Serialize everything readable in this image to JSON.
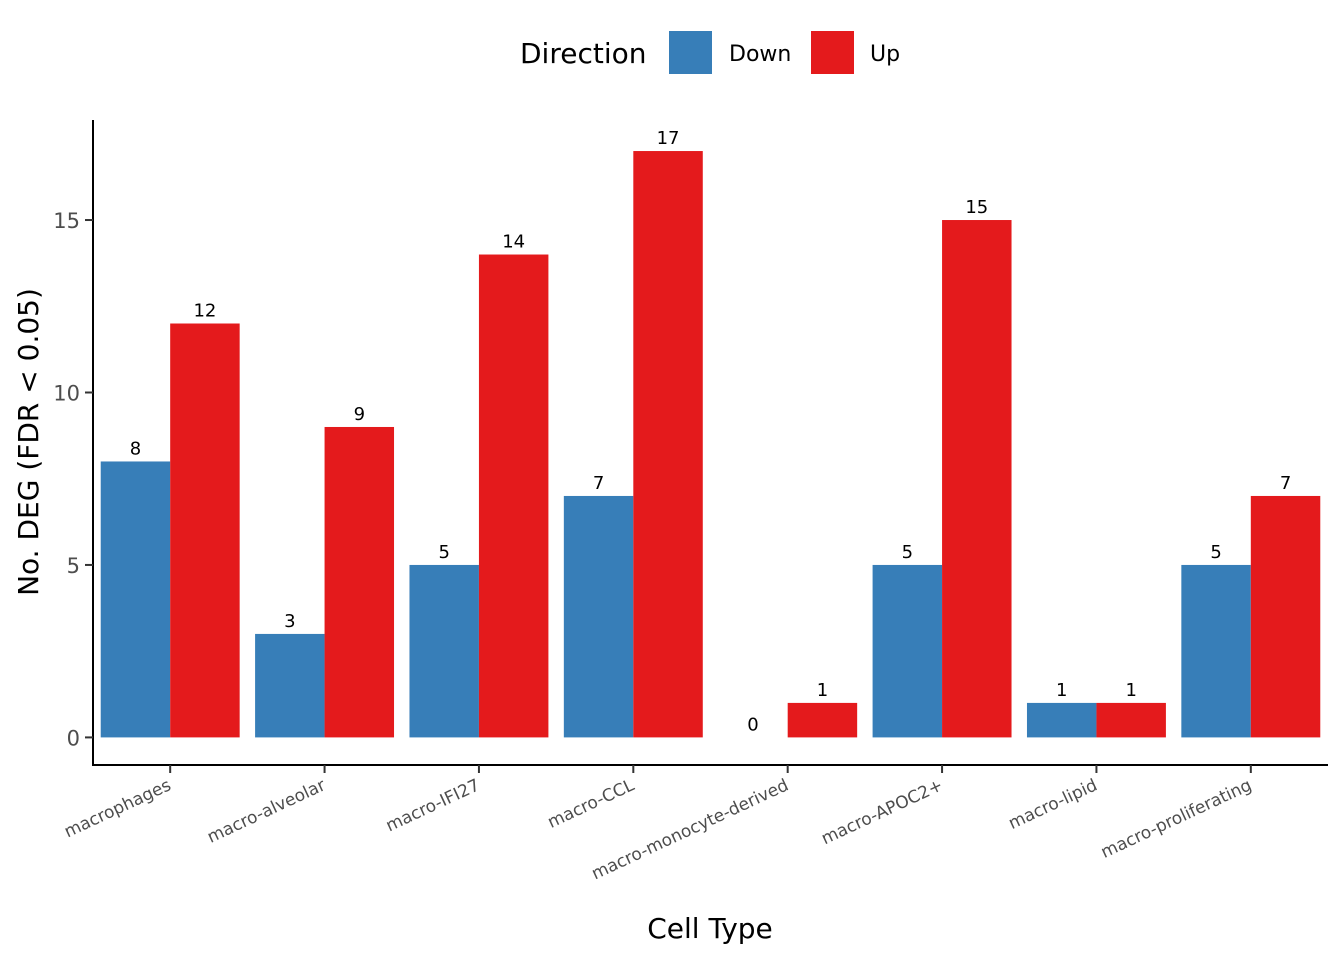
{
  "chart_data": {
    "type": "bar",
    "title": "",
    "xlabel": "Cell Type",
    "ylabel": "No. DEG (FDR < 0.05)",
    "ylim": [
      -0.8,
      17.9
    ],
    "yticks": [
      0,
      5,
      10,
      15
    ],
    "grid": false,
    "legend": {
      "title": "Direction",
      "position": "top"
    },
    "categories": [
      "macrophages",
      "macro-alveolar",
      "macro-IFI27",
      "macro-CCL",
      "macro-monocyte-derived",
      "macro-APOC2+",
      "macro-lipid",
      "macro-proliferating"
    ],
    "series": [
      {
        "name": "Down",
        "color": "#377eb8",
        "values": [
          8,
          3,
          5,
          7,
          0,
          5,
          1,
          5
        ]
      },
      {
        "name": "Up",
        "color": "#e41a1c",
        "values": [
          12,
          9,
          14,
          17,
          1,
          15,
          1,
          7
        ]
      }
    ]
  }
}
